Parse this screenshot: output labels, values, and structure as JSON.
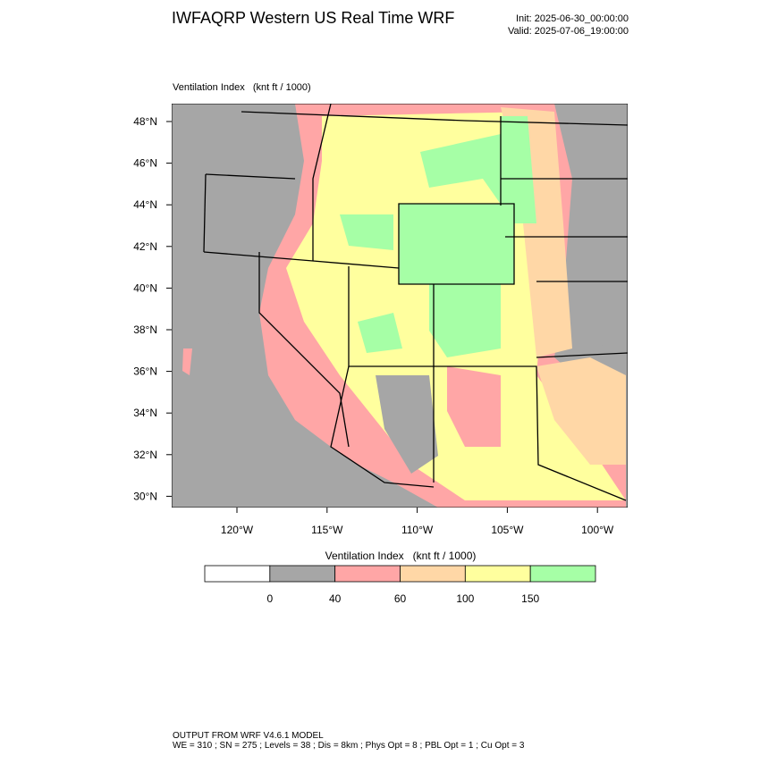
{
  "header": {
    "title": "IWFAQRP Western US Real Time WRF",
    "init": "Init: 2025-06-30_00:00:00",
    "valid": "Valid: 2025-07-06_19:00:00"
  },
  "map": {
    "title": "Ventilation Index   (knt ft / 1000)",
    "lat_labels": [
      "48°N",
      "46°N",
      "44°N",
      "42°N",
      "40°N",
      "38°N",
      "36°N",
      "34°N",
      "32°N",
      "30°N"
    ],
    "lon_labels": [
      "120°W",
      "115°W",
      "110°W",
      "105°W",
      "100°W"
    ]
  },
  "colorbar": {
    "title": "Ventilation Index   (knt ft / 1000)",
    "colors": [
      "#ffffff",
      "#a6a6a6",
      "#ffa6a6",
      "#ffd7a6",
      "#ffff9e",
      "#a6ffa6"
    ],
    "labels": [
      "0",
      "40",
      "60",
      "100",
      "150"
    ]
  },
  "footer": {
    "line1": "OUTPUT FROM WRF V4.6.1 MODEL",
    "line2": "WE = 310 ; SN = 275 ; Levels = 38 ; Dis = 8km ; Phys Opt = 8 ; PBL Opt = 1 ; Cu Opt = 3"
  }
}
